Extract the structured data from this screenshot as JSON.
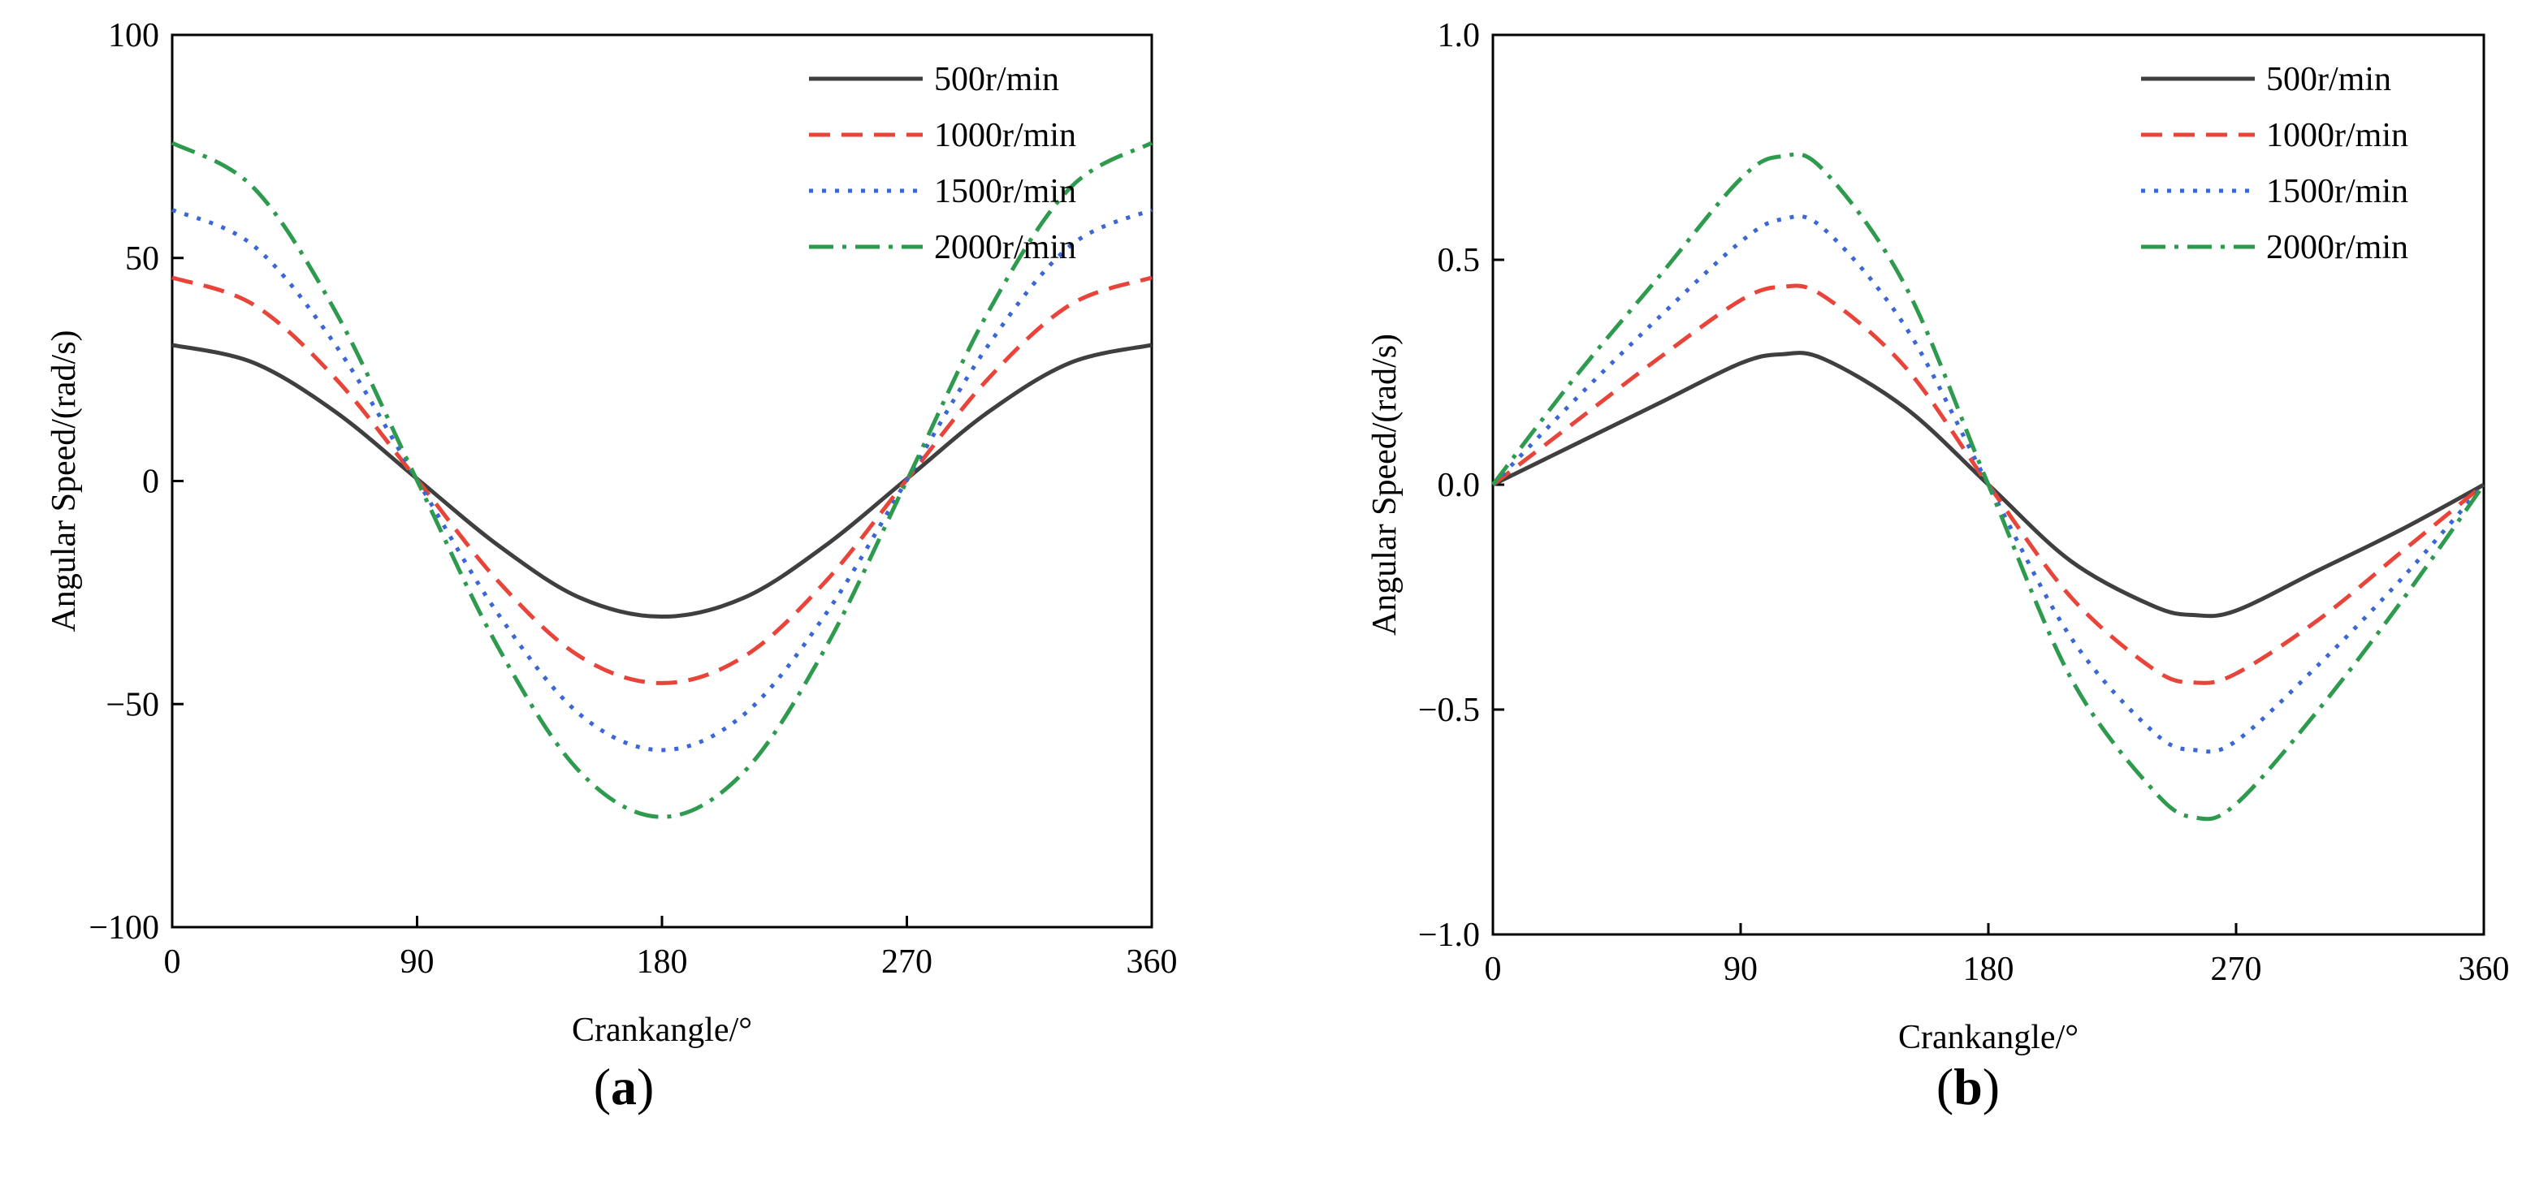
{
  "chart_data": [
    {
      "type": "line",
      "panel_label": "(a)",
      "panel_letter": "a",
      "xlabel": "Crankangle/°",
      "ylabel": "Angular Speed/(rad/s)",
      "xlim": [
        0,
        360
      ],
      "ylim": [
        -100,
        100
      ],
      "xticks": [
        0,
        90,
        180,
        270,
        360
      ],
      "yticks": [
        -100,
        -50,
        0,
        50,
        100
      ],
      "xtick_labels": [
        "0",
        "90",
        "180",
        "270",
        "360"
      ],
      "ytick_labels": [
        "−100",
        "−50",
        "0",
        "50",
        "100"
      ],
      "legend_position": "top-right",
      "grid": false,
      "x": [
        0,
        30,
        60,
        90,
        120,
        150,
        180,
        210,
        240,
        270,
        300,
        330,
        360
      ],
      "series": [
        {
          "name": "500r/min",
          "color": "#3f3f3f",
          "style": "solid",
          "values": [
            30.5,
            26.5,
            15.5,
            0.5,
            -14.5,
            -26.2,
            -30.4,
            -26.2,
            -14.5,
            0.5,
            15.5,
            26.5,
            30.5
          ]
        },
        {
          "name": "1000r/min",
          "color": "#e8443a",
          "style": "dashed",
          "values": [
            45.6,
            39.5,
            23.0,
            0.3,
            -22.6,
            -39.4,
            -45.3,
            -39.4,
            -22.6,
            0.3,
            23.0,
            39.5,
            45.6
          ]
        },
        {
          "name": "1500r/min",
          "color": "#3a66d6",
          "style": "dotted",
          "values": [
            60.8,
            52.7,
            30.5,
            0.2,
            -30.0,
            -52.4,
            -60.3,
            -52.4,
            -30.0,
            0.2,
            30.5,
            52.7,
            60.8
          ]
        },
        {
          "name": "2000r/min",
          "color": "#2e9a4e",
          "style": "dashdot",
          "values": [
            75.8,
            65.7,
            38.0,
            0.1,
            -37.5,
            -65.3,
            -75.3,
            -65.3,
            -37.5,
            0.1,
            38.0,
            65.7,
            75.8
          ]
        }
      ]
    },
    {
      "type": "line",
      "panel_label": "(b)",
      "panel_letter": "b",
      "xlabel": "Crankangle/°",
      "ylabel": "Angular Speed/(rad/s)",
      "xlim": [
        0,
        360
      ],
      "ylim": [
        -1.0,
        1.0
      ],
      "xticks": [
        0,
        90,
        180,
        270,
        360
      ],
      "yticks": [
        -1.0,
        -0.5,
        0.0,
        0.5,
        1.0
      ],
      "xtick_labels": [
        "0",
        "90",
        "180",
        "270",
        "360"
      ],
      "ytick_labels": [
        "−1.0",
        "−0.5",
        "0.0",
        "0.5",
        "1.0"
      ],
      "legend_position": "top-right",
      "grid": false,
      "x": [
        0,
        30,
        60,
        90,
        105,
        120,
        150,
        180,
        210,
        240,
        255,
        270,
        300,
        330,
        360
      ],
      "series": [
        {
          "name": "500r/min",
          "color": "#3f3f3f",
          "style": "solid",
          "values": [
            0.0,
            0.09,
            0.18,
            0.27,
            0.29,
            0.28,
            0.17,
            0.0,
            -0.17,
            -0.27,
            -0.29,
            -0.28,
            -0.19,
            -0.1,
            0.0
          ]
        },
        {
          "name": "1000r/min",
          "color": "#e8443a",
          "style": "dashed",
          "values": [
            0.0,
            0.14,
            0.28,
            0.41,
            0.44,
            0.42,
            0.26,
            0.0,
            -0.25,
            -0.41,
            -0.44,
            -0.42,
            -0.3,
            -0.15,
            0.0
          ]
        },
        {
          "name": "1500r/min",
          "color": "#3a66d6",
          "style": "dotted",
          "values": [
            0.0,
            0.19,
            0.37,
            0.54,
            0.59,
            0.57,
            0.35,
            0.0,
            -0.34,
            -0.55,
            -0.59,
            -0.57,
            -0.4,
            -0.21,
            0.0
          ]
        },
        {
          "name": "2000r/min",
          "color": "#2e9a4e",
          "style": "dashdot",
          "values": [
            0.0,
            0.24,
            0.46,
            0.68,
            0.73,
            0.7,
            0.44,
            0.0,
            -0.43,
            -0.68,
            -0.74,
            -0.71,
            -0.5,
            -0.26,
            0.0
          ]
        }
      ]
    }
  ]
}
